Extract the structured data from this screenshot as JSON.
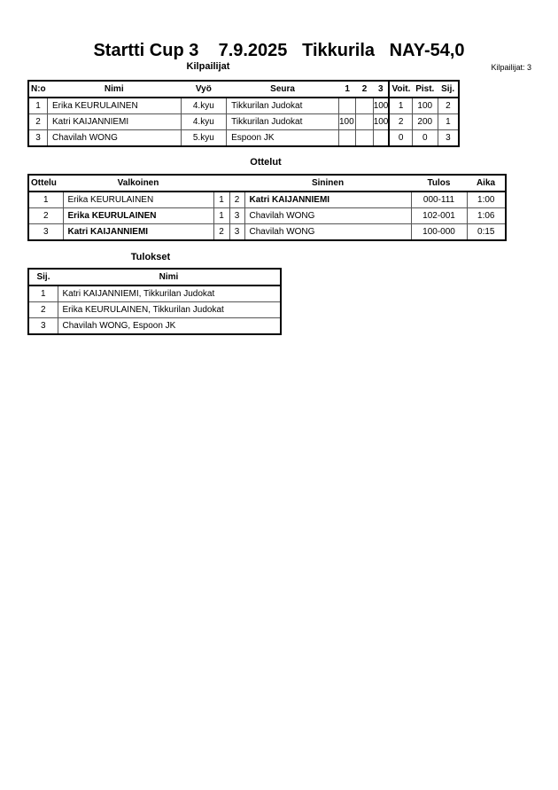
{
  "header": {
    "title": "Startti Cup 3    7.9.2025   Tikkurila   NAY-54,0",
    "competitors_count": "Kilpailijat: 3"
  },
  "competitors": {
    "heading": "Kilpailijat",
    "columns": [
      "N:o",
      "Nimi",
      "Vyö",
      "Seura",
      "1",
      "2",
      "3",
      "Voit.",
      "Pist.",
      "Sij."
    ],
    "rows": [
      [
        "1",
        "Erika KEURULAINEN",
        "4.kyu",
        "Tikkurilan Judokat",
        "",
        "",
        "100",
        "1",
        "100",
        "2"
      ],
      [
        "2",
        "Katri KAIJANNIEMI",
        "4.kyu",
        "Tikkurilan Judokat",
        "100",
        "",
        "100",
        "2",
        "200",
        "1"
      ],
      [
        "3",
        "Chavilah WONG",
        "5.kyu",
        "Espoon JK",
        "",
        "",
        "",
        "0",
        "0",
        "3"
      ]
    ]
  },
  "matches": {
    "heading": "Ottelut",
    "columns": [
      "Ottelu",
      "Valkoinen",
      "",
      "",
      "Sininen",
      "Tulos",
      "Aika"
    ],
    "rows": [
      {
        "no": "1",
        "white": "Erika KEURULAINEN",
        "wn": "1",
        "bn": "2",
        "blue": "Katri KAIJANNIEMI",
        "score": "000-111",
        "time": "1:00",
        "winner": "blue"
      },
      {
        "no": "2",
        "white": "Erika KEURULAINEN",
        "wn": "1",
        "bn": "3",
        "blue": "Chavilah WONG",
        "score": "102-001",
        "time": "1:06",
        "winner": "white"
      },
      {
        "no": "3",
        "white": "Katri KAIJANNIEMI",
        "wn": "2",
        "bn": "3",
        "blue": "Chavilah WONG",
        "score": "100-000",
        "time": "0:15",
        "winner": "white"
      }
    ]
  },
  "results": {
    "heading": "Tulokset",
    "columns": [
      "Sij.",
      "Nimi"
    ],
    "rows": [
      [
        "1",
        "Katri KAIJANNIEMI, Tikkurilan Judokat"
      ],
      [
        "2",
        "Erika KEURULAINEN, Tikkurilan Judokat"
      ],
      [
        "3",
        "Chavilah WONG, Espoon JK"
      ]
    ]
  }
}
